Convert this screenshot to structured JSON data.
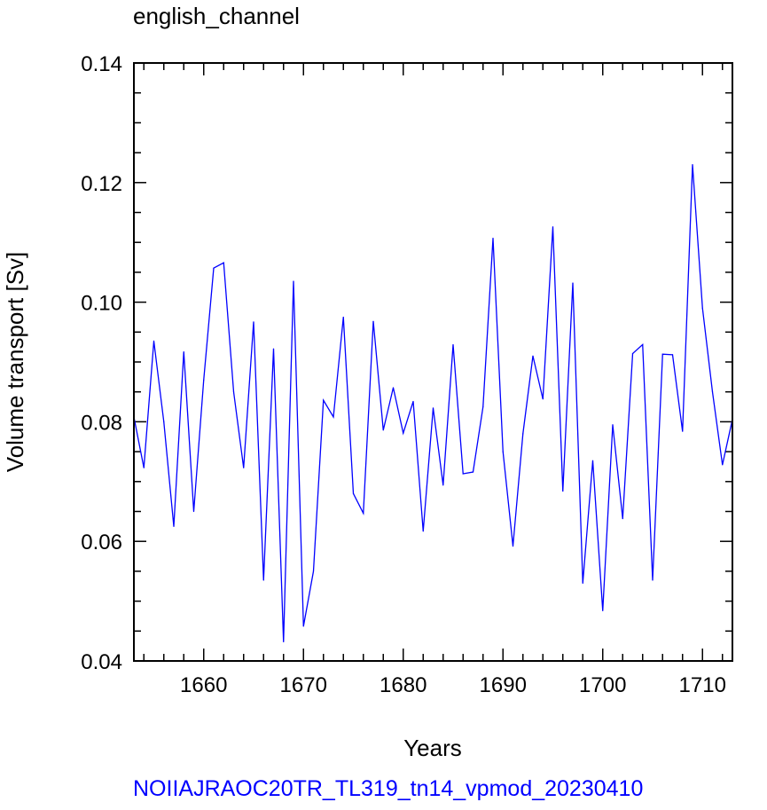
{
  "chart_data": {
    "type": "line",
    "title": "english_channel",
    "xlabel": "Years",
    "ylabel": "Volume transport [Sv]",
    "footer": "NOIIAJRAOC20TR_TL319_tn14_vpmod_20230410",
    "xlim": [
      1653,
      1713
    ],
    "ylim": [
      0.04,
      0.14
    ],
    "x_ticks": [
      "1660",
      "1670",
      "1680",
      "1690",
      "1700",
      "1710"
    ],
    "y_ticks": [
      "0.04",
      "0.06",
      "0.08",
      "0.10",
      "0.12",
      "0.14"
    ],
    "grid": false,
    "series": [
      {
        "color": "#0000ff",
        "x": [
          1653,
          1654,
          1655,
          1656,
          1657,
          1658,
          1659,
          1660,
          1661,
          1662,
          1663,
          1664,
          1665,
          1666,
          1667,
          1668,
          1669,
          1670,
          1671,
          1672,
          1673,
          1674,
          1675,
          1676,
          1677,
          1678,
          1679,
          1680,
          1681,
          1682,
          1683,
          1684,
          1685,
          1686,
          1687,
          1688,
          1689,
          1690,
          1691,
          1692,
          1693,
          1694,
          1695,
          1696,
          1697,
          1698,
          1699,
          1700,
          1701,
          1702,
          1703,
          1704,
          1705,
          1706,
          1707,
          1708,
          1709,
          1710,
          1711,
          1712,
          1713
        ],
        "values": [
          0.0808,
          0.0723,
          0.0935,
          0.08,
          0.0625,
          0.0917,
          0.065,
          0.087,
          0.1057,
          0.1066,
          0.085,
          0.0723,
          0.0967,
          0.0535,
          0.0922,
          0.0432,
          0.1035,
          0.0458,
          0.055,
          0.0836,
          0.0808,
          0.0975,
          0.068,
          0.0647,
          0.0968,
          0.0786,
          0.0857,
          0.0781,
          0.0834,
          0.0617,
          0.0823,
          0.0694,
          0.0929,
          0.0713,
          0.0716,
          0.0825,
          0.1107,
          0.075,
          0.0592,
          0.078,
          0.091,
          0.0838,
          0.1126,
          0.0684,
          0.1032,
          0.053,
          0.0735,
          0.0484,
          0.0795,
          0.0638,
          0.0914,
          0.0929,
          0.0535,
          0.0913,
          0.0912,
          0.0784,
          0.123,
          0.099,
          0.085,
          0.0728,
          0.0804
        ]
      }
    ]
  }
}
